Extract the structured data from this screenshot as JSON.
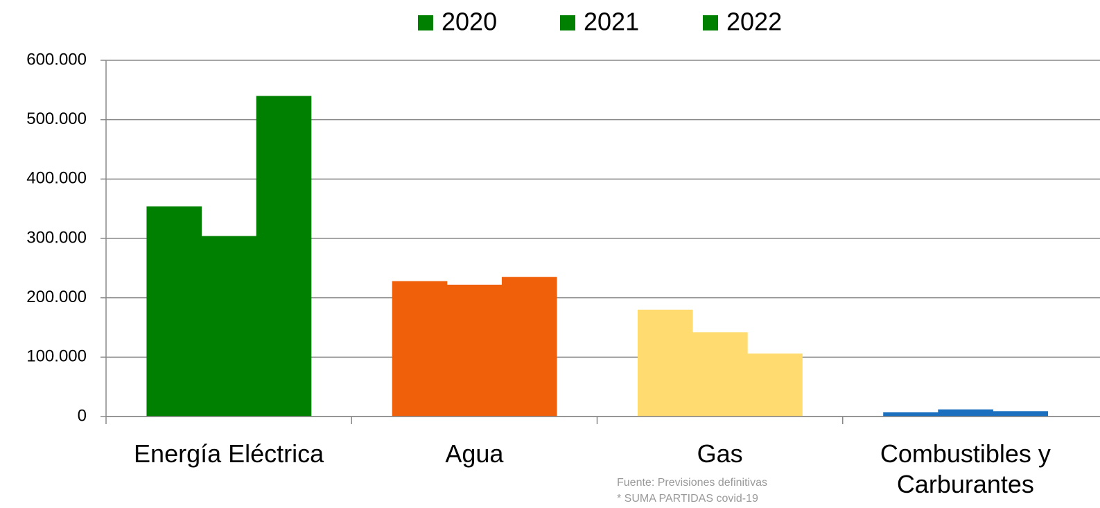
{
  "chart_data": {
    "type": "bar",
    "categories": [
      "Energía Eléctrica",
      "Agua",
      "Gas",
      "Combustibles y Carburantes"
    ],
    "category_colors": [
      "#008000",
      "#f0600a",
      "#ffdb70",
      "#1a6fbf"
    ],
    "series": [
      {
        "name": "2020",
        "color": "#008000",
        "values": [
          354000,
          228000,
          180000,
          7000
        ]
      },
      {
        "name": "2021",
        "color": "#008000",
        "values": [
          304000,
          222000,
          142000,
          12000
        ]
      },
      {
        "name": "2022",
        "color": "#008000",
        "values": [
          540000,
          235000,
          106000,
          9000
        ]
      }
    ],
    "ylim": [
      0,
      600000
    ],
    "yticks": [
      0,
      {
        "value": 100000,
        "label": "100.000"
      },
      {
        "value": 200000,
        "label": "200.000"
      },
      {
        "value": 300000,
        "label": "300.000"
      },
      {
        "value": 400000,
        "label": "400.000"
      },
      {
        "value": 500000,
        "label": "500.000"
      },
      {
        "value": 600000,
        "label": "600.000"
      }
    ],
    "grid": true,
    "legend": "top",
    "annotations": [
      "Fuente: Previsiones definitivas",
      "* SUMA PARTIDAS covid-19"
    ]
  }
}
